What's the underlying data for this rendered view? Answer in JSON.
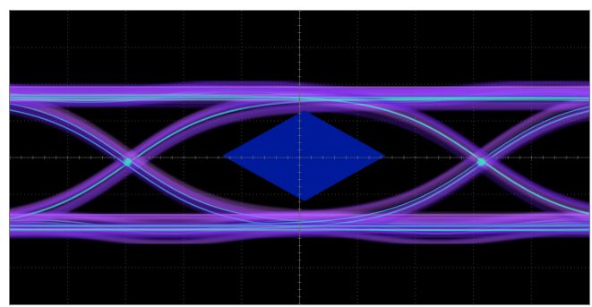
{
  "display": {
    "mode": "eye-diagram",
    "background_color": "#000000",
    "graticule_color": "#3a3a3a",
    "center_axis_color": "#6a6a6a",
    "graticule_divisions": {
      "horizontal": 10,
      "vertical": 8
    },
    "persistence_colors": {
      "low_density": "#5a1fd1",
      "mid_density": "#9b3cff",
      "high_density": "#3be7c8",
      "edge": "#c66cff"
    },
    "mask": {
      "shape": "diamond",
      "color": "#001a9c"
    },
    "eye_count": 2,
    "crossing_count": 2
  }
}
